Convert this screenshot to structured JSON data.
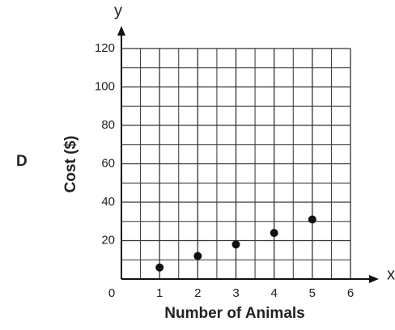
{
  "chart_data": {
    "type": "scatter",
    "label": "D",
    "xlabel": "Number of Animals",
    "ylabel": "Cost ($)",
    "x_axis_name": "x",
    "y_axis_name": "y",
    "x": [
      1,
      2,
      3,
      4,
      5
    ],
    "values": [
      6,
      12,
      18,
      24,
      31
    ],
    "color": "#111111",
    "xlim": [
      0,
      6
    ],
    "ylim": [
      0,
      120
    ],
    "xticks": [
      0,
      1,
      2,
      3,
      4,
      5,
      6
    ],
    "yticks": [
      20,
      40,
      60,
      80,
      100,
      120
    ],
    "grid": true,
    "minor_grid": true
  }
}
